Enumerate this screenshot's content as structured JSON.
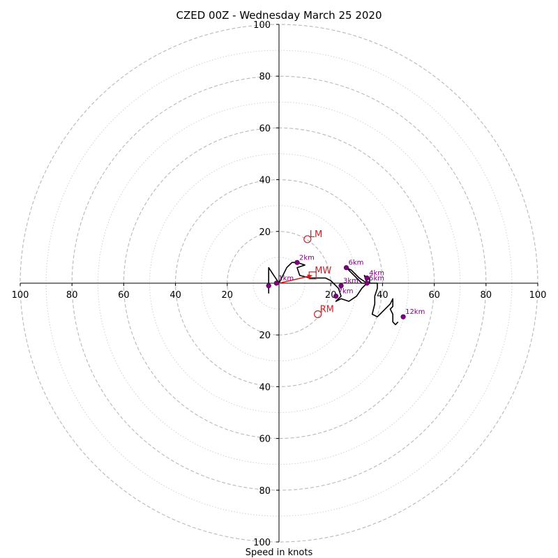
{
  "chart_data": {
    "type": "hodograph",
    "title": "CZED 00Z - Wednesday March 25 2020",
    "xlabel": "Speed in knots",
    "axis_range": [
      -100,
      100
    ],
    "rings_dashed": [
      20,
      40,
      60,
      80,
      100
    ],
    "rings_dotted": [
      10,
      30,
      50,
      70,
      90
    ],
    "tick_labels": {
      "x": [
        {
          "value": -100,
          "label": "100"
        },
        {
          "value": -80,
          "label": "80"
        },
        {
          "value": -60,
          "label": "60"
        },
        {
          "value": -40,
          "label": "40"
        },
        {
          "value": -20,
          "label": "20"
        },
        {
          "value": 20,
          "label": "20"
        },
        {
          "value": 40,
          "label": "40"
        },
        {
          "value": 60,
          "label": "60"
        },
        {
          "value": 80,
          "label": "80"
        },
        {
          "value": 100,
          "label": "100"
        }
      ],
      "y": [
        {
          "value": 100,
          "label": "100"
        },
        {
          "value": 80,
          "label": "80"
        },
        {
          "value": 60,
          "label": "60"
        },
        {
          "value": 40,
          "label": "40"
        },
        {
          "value": 20,
          "label": "20"
        },
        {
          "value": -20,
          "label": "20"
        },
        {
          "value": -40,
          "label": "40"
        },
        {
          "value": -60,
          "label": "60"
        },
        {
          "value": -80,
          "label": "80"
        },
        {
          "value": -100,
          "label": "100"
        }
      ]
    },
    "hodograph_trace": [
      [
        -4,
        -4
      ],
      [
        -4,
        1
      ],
      [
        -4,
        6
      ],
      [
        -2,
        3
      ],
      [
        0,
        0
      ],
      [
        1,
        2
      ],
      [
        2,
        4
      ],
      [
        3,
        6
      ],
      [
        5,
        8
      ],
      [
        7,
        8
      ],
      [
        10,
        7
      ],
      [
        7,
        6
      ],
      [
        8,
        3
      ],
      [
        12,
        2
      ],
      [
        18,
        2
      ],
      [
        20,
        1
      ],
      [
        21,
        0
      ],
      [
        22,
        -1
      ],
      [
        23,
        -2
      ],
      [
        24,
        -5
      ],
      [
        22,
        -7
      ],
      [
        24,
        -6
      ],
      [
        27,
        -7
      ],
      [
        30,
        -5
      ],
      [
        32,
        -2
      ],
      [
        34,
        0
      ],
      [
        33,
        3
      ],
      [
        34,
        2
      ],
      [
        35,
        2
      ],
      [
        35,
        0
      ],
      [
        34,
        0
      ],
      [
        31,
        2
      ],
      [
        28,
        5
      ],
      [
        26,
        6
      ],
      [
        28,
        4
      ],
      [
        30,
        2
      ],
      [
        32,
        0
      ],
      [
        35,
        0
      ],
      [
        37,
        0
      ],
      [
        38,
        0
      ],
      [
        38,
        -2
      ],
      [
        37,
        -5
      ],
      [
        37,
        -8
      ],
      [
        36,
        -12
      ],
      [
        38,
        -13
      ],
      [
        40,
        -11
      ],
      [
        42,
        -9
      ],
      [
        43,
        -8
      ],
      [
        44,
        -6
      ],
      [
        44,
        -8
      ],
      [
        44,
        -9
      ],
      [
        43,
        -10
      ],
      [
        44,
        -12
      ],
      [
        44,
        -15
      ],
      [
        45,
        -16
      ],
      [
        46,
        -15
      ]
    ],
    "height_markers": [
      {
        "label": "1km",
        "x": -1,
        "y": 0
      },
      {
        "label": "",
        "x": -4,
        "y": -1
      },
      {
        "label": "2km",
        "x": 7,
        "y": 8
      },
      {
        "label": "3km",
        "x": 24,
        "y": -1
      },
      {
        "label": "4km",
        "x": 34,
        "y": 2
      },
      {
        "label": "5km",
        "x": 34,
        "y": 0
      },
      {
        "label": "6km",
        "x": 26,
        "y": 6
      },
      {
        "label": "7km",
        "x": 22,
        "y": -5
      },
      {
        "label": "12km",
        "x": 48,
        "y": -13
      }
    ],
    "storm_motion": [
      {
        "label": "LM",
        "x": 11,
        "y": 17,
        "marker": "circle"
      },
      {
        "label": "MW",
        "x": 13,
        "y": 3,
        "marker": "square"
      },
      {
        "label": "RM",
        "x": 15,
        "y": -12,
        "marker": "circle"
      }
    ],
    "mean_wind_vector": {
      "from": [
        0,
        0
      ],
      "to": [
        13,
        3
      ]
    },
    "colors": {
      "trace": "#000000",
      "height_marker": "#800080",
      "storm_motion": "#c0272d",
      "vector": "#e31a1c",
      "ring": "#b8b8b8"
    }
  }
}
